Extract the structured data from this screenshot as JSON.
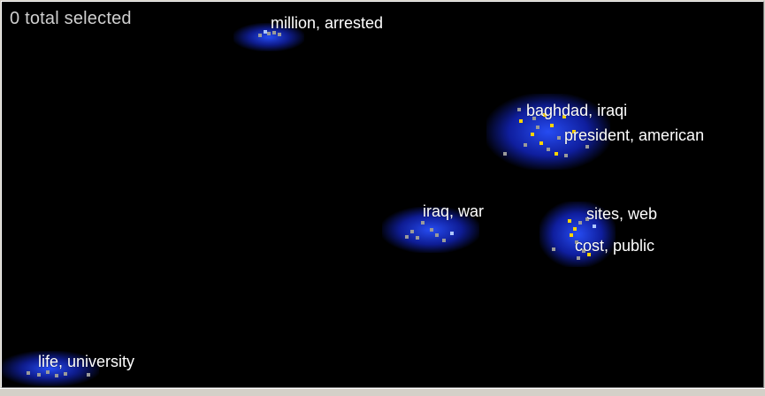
{
  "selection": {
    "text": "0 total selected"
  },
  "colors": {
    "background": "#000000",
    "glow": "#1e3cff",
    "dot_selected": "#ffd400",
    "dot_grey": "#9a9a9a",
    "dot_light": "#aec6ff",
    "label": "#ffffff"
  },
  "clusters": [
    {
      "id": "million-arrested",
      "label": "million, arrested"
    },
    {
      "id": "baghdad-iraqi",
      "label": "baghdad, iraqi"
    },
    {
      "id": "president-american",
      "label": "president, american"
    },
    {
      "id": "iraq-war",
      "label": "iraq, war"
    },
    {
      "id": "sites-web",
      "label": "sites, web"
    },
    {
      "id": "cost-public",
      "label": "cost, public"
    },
    {
      "id": "life-university",
      "label": "life, university"
    }
  ]
}
